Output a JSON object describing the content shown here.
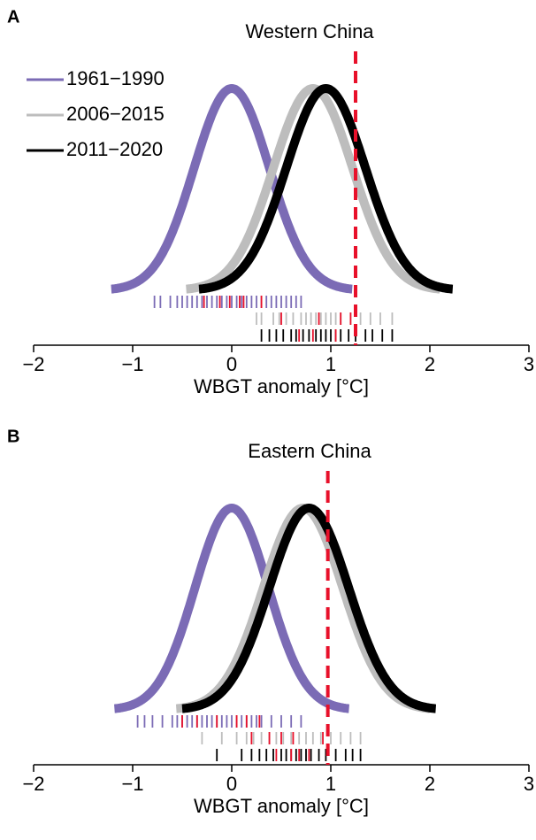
{
  "chart_data": [
    {
      "type": "density",
      "panel_label": "A",
      "title": "Western China",
      "xlabel": "WBGT anomaly [°C]",
      "xlim": [
        -2,
        3
      ],
      "xticks": [
        {
          "value": -2,
          "label": "−2"
        },
        {
          "value": -1,
          "label": "−1"
        },
        0,
        1,
        2,
        3
      ],
      "threshold": 1.25,
      "threshold_color": "#e8102a",
      "legend": "top left",
      "series": [
        {
          "name": "1961−1990",
          "color": "#7b6bb5",
          "mean": 0,
          "sd": 0.38,
          "rug": [
            -0.78,
            -0.72,
            -0.62,
            -0.55,
            -0.5,
            -0.45,
            -0.4,
            -0.35,
            -0.3,
            -0.25,
            -0.2,
            -0.15,
            -0.1,
            -0.05,
            0,
            0.05,
            0.1,
            0.15,
            0.2,
            0.25,
            0.3,
            0.35,
            0.4,
            0.45,
            0.5,
            0.55,
            0.6,
            0.65,
            0.7
          ],
          "rug_highlight": [
            -0.28,
            -0.12,
            -0.02,
            0.08,
            0.12,
            0.3
          ]
        },
        {
          "name": "2006−2015",
          "color": "#bdbdbd",
          "mean": 0.82,
          "sd": 0.4,
          "rug": [
            0.25,
            0.3,
            0.42,
            0.48,
            0.55,
            0.62,
            0.7,
            0.75,
            0.8,
            0.85,
            0.9,
            0.95,
            1.0,
            1.05,
            1.1,
            1.2,
            1.3,
            1.4,
            1.5,
            1.62
          ],
          "rug_highlight": [
            0.5,
            0.88,
            1.1,
            1.2
          ]
        },
        {
          "name": "2011−2020",
          "color": "#000000",
          "mean": 0.95,
          "sd": 0.4,
          "rug": [
            0.3,
            0.38,
            0.45,
            0.52,
            0.6,
            0.65,
            0.72,
            0.78,
            0.85,
            0.9,
            0.95,
            1.0,
            1.05,
            1.1,
            1.18,
            1.25,
            1.35,
            1.42,
            1.52,
            1.62
          ],
          "rug_highlight": [
            0.68,
            0.82,
            1.05
          ]
        }
      ]
    },
    {
      "type": "density",
      "panel_label": "B",
      "title": "Eastern China",
      "xlabel": "WBGT anomaly [°C]",
      "xlim": [
        -2,
        3
      ],
      "xticks": [
        {
          "value": -2,
          "label": "−2"
        },
        {
          "value": -1,
          "label": "−1"
        },
        0,
        1,
        2,
        3
      ],
      "threshold": 0.97,
      "threshold_color": "#e8102a",
      "series": [
        {
          "color": "#7b6bb5",
          "mean": 0,
          "sd": 0.37,
          "rug": [
            -0.95,
            -0.88,
            -0.8,
            -0.7,
            -0.6,
            -0.55,
            -0.5,
            -0.45,
            -0.4,
            -0.35,
            -0.3,
            -0.25,
            -0.2,
            -0.15,
            -0.1,
            -0.05,
            0,
            0.05,
            0.1,
            0.15,
            0.2,
            0.25,
            0.3,
            0.4,
            0.5,
            0.6,
            0.7
          ],
          "rug_highlight": [
            -0.5,
            -0.35,
            -0.15,
            0.05,
            0.15,
            0.28
          ]
        },
        {
          "color": "#bdbdbd",
          "mean": 0.72,
          "sd": 0.4,
          "rug": [
            -0.3,
            -0.1,
            0.05,
            0.15,
            0.22,
            0.3,
            0.38,
            0.45,
            0.52,
            0.6,
            0.68,
            0.75,
            0.82,
            0.9,
            1.0,
            1.1,
            1.2,
            1.3
          ],
          "rug_highlight": [
            0.2,
            0.38,
            0.5,
            0.62,
            0.92
          ]
        },
        {
          "color": "#000000",
          "mean": 0.78,
          "sd": 0.4,
          "rug": [
            -0.15,
            0.1,
            0.2,
            0.28,
            0.35,
            0.42,
            0.5,
            0.55,
            0.6,
            0.65,
            0.7,
            0.75,
            0.8,
            0.88,
            0.95,
            1.05,
            1.15,
            1.22,
            1.3
          ],
          "rug_highlight": [
            0.45,
            0.6,
            0.68,
            0.78
          ]
        }
      ]
    }
  ]
}
